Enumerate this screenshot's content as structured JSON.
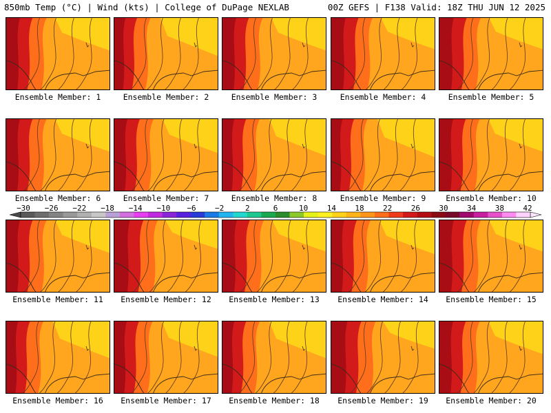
{
  "header": {
    "left": "850mb Temp (°C) | Wind (kts) | College of DuPage NEXLAB",
    "right": "00Z GEFS | F138 Valid: 18Z THU JUN 12 2025"
  },
  "panel_label_prefix": "Ensemble Member: ",
  "members": [
    {
      "label": "Ensemble Member: 1",
      "warmth": 0.55
    },
    {
      "label": "Ensemble Member: 2",
      "warmth": 0.35
    },
    {
      "label": "Ensemble Member: 3",
      "warmth": 0.55
    },
    {
      "label": "Ensemble Member: 4",
      "warmth": 0.6
    },
    {
      "label": "Ensemble Member: 5",
      "warmth": 0.6
    },
    {
      "label": "Ensemble Member: 6",
      "warmth": 0.55
    },
    {
      "label": "Ensemble Member: 7",
      "warmth": 0.5
    },
    {
      "label": "Ensemble Member: 8",
      "warmth": 0.4
    },
    {
      "label": "Ensemble Member: 9",
      "warmth": 0.35
    },
    {
      "label": "Ensemble Member: 10",
      "warmth": 0.55
    },
    {
      "label": "Ensemble Member: 11",
      "warmth": 0.55
    },
    {
      "label": "Ensemble Member: 12",
      "warmth": 0.7
    },
    {
      "label": "Ensemble Member: 13",
      "warmth": 0.6
    },
    {
      "label": "Ensemble Member: 14",
      "warmth": 0.5
    },
    {
      "label": "Ensemble Member: 15",
      "warmth": 0.6
    },
    {
      "label": "Ensemble Member: 16",
      "warmth": 0.4
    },
    {
      "label": "Ensemble Member: 17",
      "warmth": 0.45
    },
    {
      "label": "Ensemble Member: 18",
      "warmth": 0.4
    },
    {
      "label": "Ensemble Member: 19",
      "warmth": 0.75
    },
    {
      "label": "Ensemble Member: 20",
      "warmth": 0.55
    }
  ],
  "colorbar": {
    "labels": [
      "-30",
      "-26",
      "-22",
      "-18",
      "-14",
      "-10",
      "-6",
      "-2",
      "2",
      "6",
      "10",
      "14",
      "18",
      "22",
      "26",
      "30",
      "34",
      "38",
      "42"
    ],
    "colors": [
      "#595959",
      "#6e6e6e",
      "#838383",
      "#999999",
      "#b0b0b0",
      "#c7c7c7",
      "#b9a0d6",
      "#d26ee0",
      "#e83cf0",
      "#c02ae0",
      "#8a24d8",
      "#5a1ee0",
      "#2a3ad8",
      "#1a7ae8",
      "#22b4f0",
      "#20d8d0",
      "#1cc890",
      "#1aa850",
      "#2a8c2a",
      "#8cc82a",
      "#e6f01a",
      "#fff020",
      "#ffd21a",
      "#ffb41a",
      "#ff941a",
      "#ff6e1a",
      "#f03c1a",
      "#d21a1a",
      "#b40e14",
      "#8c0a14",
      "#780a28",
      "#a00a6e",
      "#c81ea0",
      "#e650c8",
      "#ff8cf0",
      "#ffd2ff"
    ]
  }
}
